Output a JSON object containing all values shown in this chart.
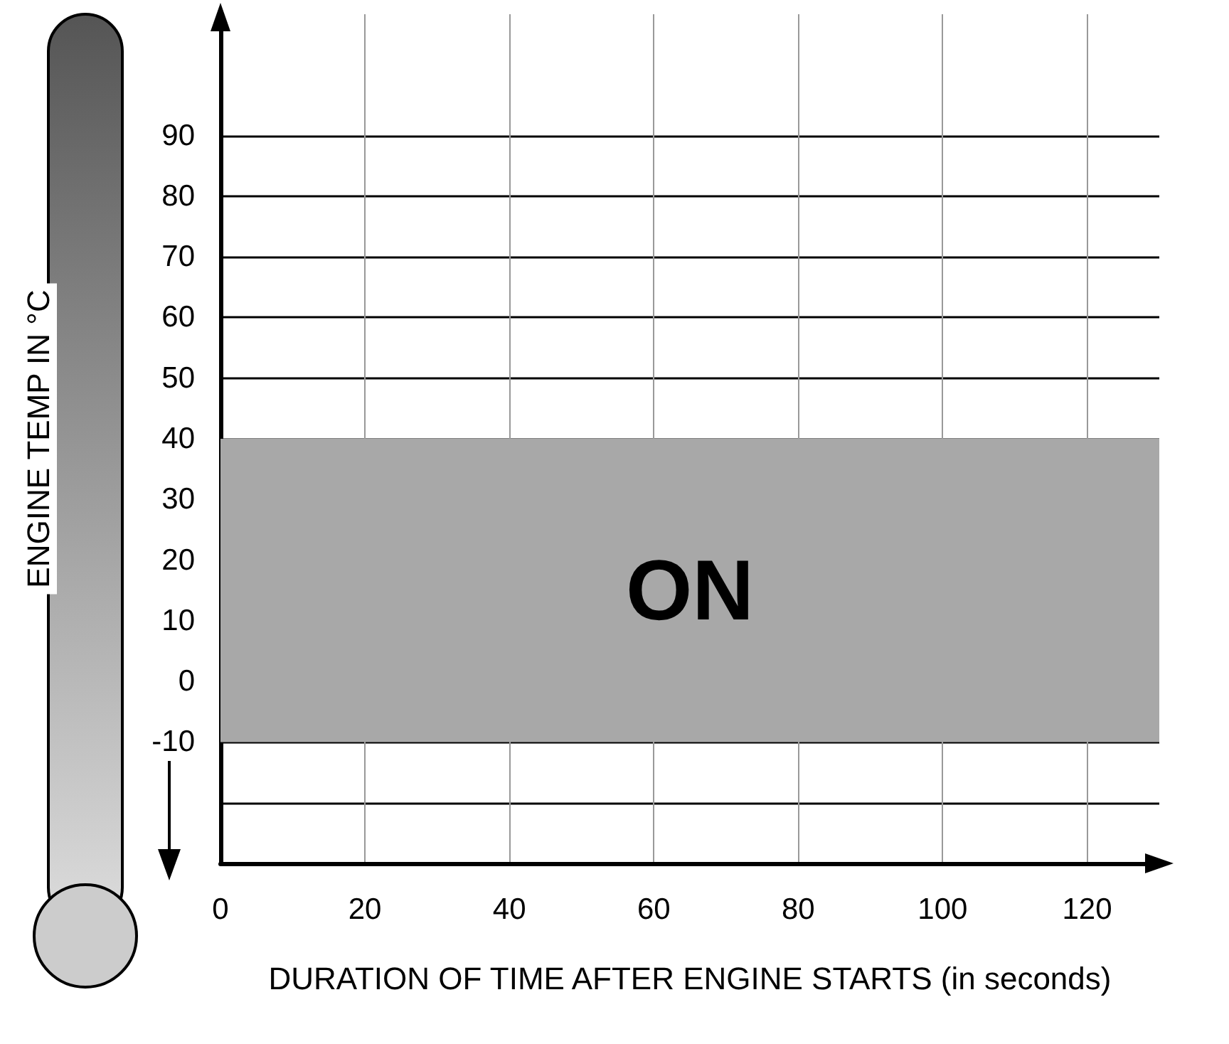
{
  "chart_data": {
    "type": "area",
    "xlabel": "DURATION OF TIME AFTER ENGINE STARTS (in seconds)",
    "ylabel": "ENGINE TEMP IN °C",
    "xlim": [
      0,
      130
    ],
    "xticks": [
      0,
      20,
      40,
      60,
      80,
      100,
      120
    ],
    "ylim": [
      -30,
      110
    ],
    "yticks": [
      {
        "value": -20,
        "label": null
      },
      -10,
      0,
      10,
      20,
      30,
      40,
      50,
      60,
      70,
      80,
      90
    ],
    "bands": [
      {
        "axis": "y",
        "from": -10,
        "to": 40,
        "label": "ON",
        "color": "#a8a8a8"
      }
    ],
    "grid": true
  }
}
